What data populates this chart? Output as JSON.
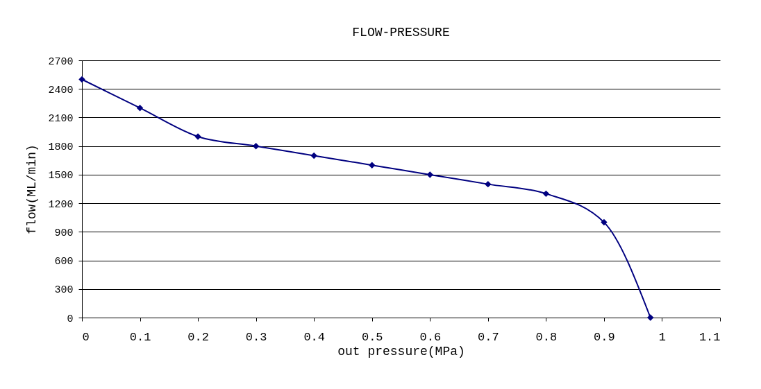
{
  "chart_data": {
    "type": "line",
    "title": "FLOW-PRESSURE",
    "xlabel": "out pressure(MPa)",
    "ylabel": "flow(ML/min)",
    "x": [
      0,
      0.1,
      0.2,
      0.3,
      0.4,
      0.5,
      0.6,
      0.7,
      0.8,
      0.9,
      0.98
    ],
    "series": [
      {
        "color": "#000080",
        "values": [
          2500,
          2200,
          1900,
          1800,
          1700,
          1600,
          1500,
          1400,
          1300,
          1000,
          0
        ]
      }
    ],
    "xlim": [
      0,
      1.1
    ],
    "xticks": [
      0,
      0.1,
      0.2,
      0.3,
      0.4,
      0.5,
      0.6,
      0.7,
      0.8,
      0.9,
      1,
      1.1
    ],
    "ylim": [
      0,
      2700
    ],
    "yticks": [
      0,
      300,
      600,
      900,
      1200,
      1500,
      1800,
      2100,
      2400,
      2700
    ],
    "grid": "y",
    "marker": "diamond",
    "line_style": "solid"
  }
}
